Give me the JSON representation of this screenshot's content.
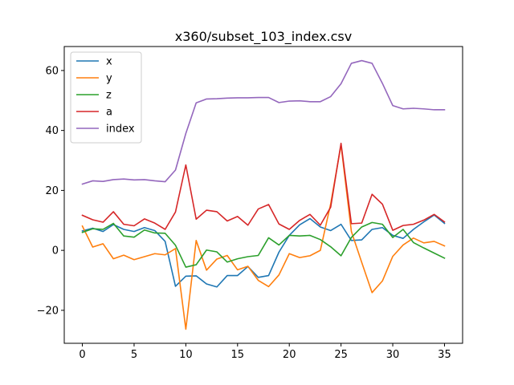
{
  "chart_data": {
    "type": "line",
    "title": "x360/subset_103_index.csv",
    "xlabel": "",
    "ylabel": "",
    "x": [
      0,
      1,
      2,
      3,
      4,
      5,
      6,
      7,
      8,
      9,
      10,
      11,
      12,
      13,
      14,
      15,
      16,
      17,
      18,
      19,
      20,
      21,
      22,
      23,
      24,
      25,
      26,
      27,
      28,
      29,
      30,
      31,
      32,
      33,
      34,
      35
    ],
    "xlim": [
      -1.75,
      36.75
    ],
    "ylim": [
      -31,
      68
    ],
    "xticks": [
      0,
      5,
      10,
      15,
      20,
      25,
      30,
      35
    ],
    "yticks": [
      -20,
      0,
      20,
      40,
      60
    ],
    "grid": false,
    "legend_position": "upper-left",
    "series": [
      {
        "name": "x",
        "color": "#1f77b4",
        "values": [
          6.5,
          7.4,
          6.3,
          8.6,
          7.0,
          6.3,
          7.6,
          6.6,
          3.0,
          -12.0,
          -8.6,
          -8.5,
          -11.2,
          -12.2,
          -8.4,
          -8.4,
          -5.4,
          -9.0,
          -8.4,
          -0.6,
          5.0,
          8.5,
          10.6,
          7.8,
          6.6,
          8.7,
          3.3,
          3.5,
          7.0,
          7.6,
          5.0,
          4.0,
          7.0,
          9.5,
          11.8,
          9.0
        ]
      },
      {
        "name": "y",
        "color": "#ff7f0e",
        "values": [
          8.1,
          1.1,
          2.2,
          -2.8,
          -1.6,
          -3.1,
          -2.1,
          -1.1,
          -1.5,
          0.6,
          -26.3,
          3.3,
          -6.6,
          -2.9,
          -1.7,
          -6.5,
          -5.3,
          -10.0,
          -12.1,
          -8.2,
          -1.1,
          -2.4,
          -1.8,
          0.0,
          15.5,
          35.2,
          6.3,
          -4.0,
          -14.1,
          -10.2,
          -2.0,
          1.8,
          4.1,
          2.5,
          3.0,
          1.5
        ]
      },
      {
        "name": "z",
        "color": "#2ca02c",
        "values": [
          6.0,
          7.2,
          7.0,
          9.0,
          4.8,
          4.4,
          6.8,
          5.8,
          5.7,
          1.7,
          -5.6,
          -4.8,
          0.1,
          -0.5,
          -3.9,
          -2.8,
          -2.1,
          -1.7,
          4.2,
          1.8,
          5.0,
          4.8,
          5.0,
          3.6,
          1.2,
          -1.8,
          4.3,
          7.8,
          9.3,
          8.7,
          4.3,
          7.0,
          2.6,
          0.8,
          -0.9,
          -2.6
        ]
      },
      {
        "name": "a",
        "color": "#d62728",
        "values": [
          11.7,
          10.2,
          9.4,
          12.9,
          8.7,
          8.2,
          10.5,
          9.1,
          7.0,
          12.8,
          28.5,
          10.4,
          13.4,
          12.9,
          9.8,
          11.3,
          8.4,
          13.8,
          15.3,
          8.8,
          7.0,
          10.0,
          12.0,
          8.4,
          14.4,
          35.7,
          8.9,
          9.1,
          18.7,
          15.4,
          6.7,
          8.3,
          8.7,
          10.1,
          12.0,
          9.5
        ]
      },
      {
        "name": "index",
        "color": "#9467bd",
        "values": [
          22.1,
          23.2,
          23.0,
          23.6,
          23.8,
          23.5,
          23.6,
          23.2,
          22.9,
          26.8,
          39.0,
          49.2,
          50.5,
          50.6,
          50.8,
          50.9,
          50.9,
          51.0,
          51.0,
          49.3,
          49.8,
          49.9,
          49.6,
          49.6,
          51.3,
          55.6,
          62.4,
          63.3,
          62.4,
          55.7,
          48.3,
          47.2,
          47.4,
          47.2,
          46.9,
          46.9
        ]
      }
    ]
  }
}
